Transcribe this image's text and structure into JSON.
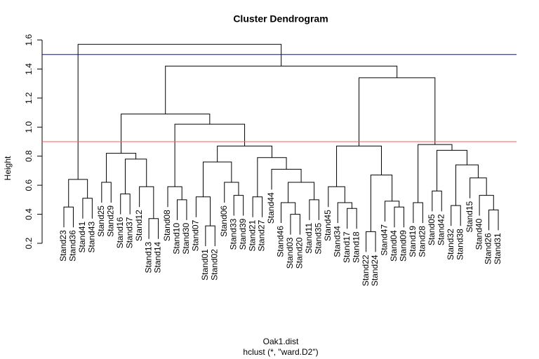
{
  "chart_data": {
    "type": "dendrogram",
    "title": "Cluster Dendrogram",
    "ylabel": "Height",
    "xlabel": "Oak1.dist",
    "subtitle": "hclust (*, \"ward.D2\")",
    "ylim": [
      0.2,
      1.6
    ],
    "yticks": [
      0.2,
      0.4,
      0.6,
      0.8,
      {
        "value": 1,
        "label": "1.0"
      },
      1.2,
      1.4,
      1.6
    ],
    "hlines": [
      {
        "value": 1.5,
        "color": "#0000ff"
      },
      {
        "value": 0.9,
        "color": "#ff5a5a"
      }
    ],
    "color": "#000000",
    "tree": {
      "height": 1.57,
      "children": [
        {
          "height": 0.64,
          "children": [
            {
              "height": 0.45,
              "children": [
                "Stand23",
                "Stand36"
              ]
            },
            {
              "height": 0.51,
              "children": [
                "Stand41",
                "Stand43"
              ]
            }
          ]
        },
        {
          "height": 1.42,
          "children": [
            {
              "height": 1.09,
              "children": [
                {
                  "height": 0.82,
                  "children": [
                    {
                      "height": 0.62,
                      "children": [
                        "Stand25",
                        "Stand29"
                      ]
                    },
                    {
                      "height": 0.78,
                      "children": [
                        {
                          "height": 0.54,
                          "children": [
                            "Stand16",
                            "Stand37"
                          ]
                        },
                        {
                          "height": 0.59,
                          "children": [
                            "Stand12",
                            {
                              "height": 0.37,
                              "children": [
                                "Stand13",
                                "Stand14"
                              ]
                            }
                          ]
                        }
                      ]
                    }
                  ]
                },
                {
                  "height": 1.02,
                  "children": [
                    {
                      "height": 0.59,
                      "children": [
                        "Stand08",
                        {
                          "height": 0.5,
                          "children": [
                            "Stand10",
                            "Stand30"
                          ]
                        }
                      ]
                    },
                    {
                      "height": 0.87,
                      "children": [
                        {
                          "height": 0.76,
                          "children": [
                            {
                              "height": 0.52,
                              "children": [
                                "Stand07",
                                {
                                  "height": 0.32,
                                  "children": [
                                    "Stand01",
                                    "Stand02"
                                  ]
                                }
                              ]
                            },
                            {
                              "height": 0.62,
                              "children": [
                                "Stand06",
                                {
                                  "height": 0.53,
                                  "children": [
                                    "Stand33",
                                    "Stand39"
                                  ]
                                }
                              ]
                            }
                          ]
                        },
                        {
                          "height": 0.79,
                          "children": [
                            {
                              "height": 0.52,
                              "children": [
                                "Stand21",
                                "Stand27"
                              ]
                            },
                            {
                              "height": 0.71,
                              "children": [
                                "Stand44",
                                {
                                  "height": 0.62,
                                  "children": [
                                    {
                                      "height": 0.48,
                                      "children": [
                                        "Stand46",
                                        {
                                          "height": 0.4,
                                          "children": [
                                            "Stand03",
                                            "Stand20"
                                          ]
                                        }
                                      ]
                                    },
                                    {
                                      "height": 0.5,
                                      "children": [
                                        "Stand11",
                                        "Stand35"
                                      ]
                                    }
                                  ]
                                }
                              ]
                            }
                          ]
                        }
                      ]
                    }
                  ]
                }
              ]
            },
            {
              "height": 1.34,
              "children": [
                {
                  "height": 0.87,
                  "children": [
                    {
                      "height": 0.59,
                      "children": [
                        "Stand45",
                        {
                          "height": 0.48,
                          "children": [
                            "Stand34",
                            {
                              "height": 0.44,
                              "children": [
                                "Stand17",
                                "Stand18"
                              ]
                            }
                          ]
                        }
                      ]
                    },
                    {
                      "height": 0.67,
                      "children": [
                        {
                          "height": 0.28,
                          "children": [
                            "Stand22",
                            "Stand24"
                          ]
                        },
                        {
                          "height": 0.49,
                          "children": [
                            "Stand47",
                            {
                              "height": 0.45,
                              "children": [
                                "Stand04",
                                "Stand09"
                              ]
                            }
                          ]
                        }
                      ]
                    }
                  ]
                },
                {
                  "height": 0.88,
                  "children": [
                    {
                      "height": 0.48,
                      "children": [
                        "Stand19",
                        "Stand28"
                      ]
                    },
                    {
                      "height": 0.84,
                      "children": [
                        {
                          "height": 0.56,
                          "children": [
                            "Stand05",
                            "Stand42"
                          ]
                        },
                        {
                          "height": 0.74,
                          "children": [
                            {
                              "height": 0.46,
                              "children": [
                                "Stand32",
                                "Stand38"
                              ]
                            },
                            {
                              "height": 0.65,
                              "children": [
                                "Stand15",
                                {
                                  "height": 0.53,
                                  "children": [
                                    "Stand40",
                                    {
                                      "height": 0.43,
                                      "children": [
                                        "Stand26",
                                        "Stand31"
                                      ]
                                    }
                                  ]
                                }
                              ]
                            }
                          ]
                        }
                      ]
                    }
                  ]
                }
              ]
            }
          ]
        }
      ]
    }
  }
}
